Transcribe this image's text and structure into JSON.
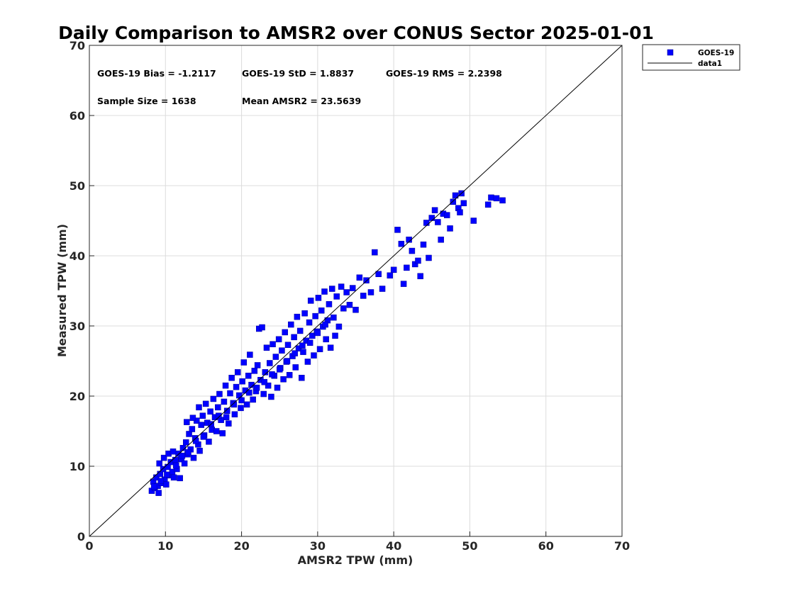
{
  "chart_data": {
    "type": "scatter",
    "title": "Daily Comparison to AMSR2 over CONUS Sector 2025-01-01",
    "xlabel": "AMSR2 TPW (mm)",
    "ylabel": "Measured TPW (mm)",
    "xlim": [
      0,
      70
    ],
    "ylim": [
      0,
      70
    ],
    "xticks": [
      "0",
      "10",
      "20",
      "30",
      "40",
      "50",
      "60",
      "70"
    ],
    "yticks": [
      "0",
      "10",
      "20",
      "30",
      "40",
      "50",
      "60",
      "70"
    ],
    "grid": true,
    "legend_position": "outside-top-right",
    "stats": {
      "bias": "GOES-19 Bias = -1.2117",
      "std": "GOES-19 StD = 1.8837",
      "rms": "GOES-19 RMS = 2.2398",
      "sample_size": "Sample Size = 1638",
      "mean": "Mean AMSR2 = 23.5639"
    },
    "series": [
      {
        "name": "GOES-19",
        "marker": "square",
        "color": "#0000ff",
        "points": [
          [
            8.2,
            6.5
          ],
          [
            8.4,
            7.8
          ],
          [
            8.6,
            6.9
          ],
          [
            8.8,
            8.4
          ],
          [
            9.0,
            7.2
          ],
          [
            9.1,
            6.2
          ],
          [
            9.3,
            8.9
          ],
          [
            9.5,
            7.6
          ],
          [
            9.7,
            9.6
          ],
          [
            9.9,
            8.1
          ],
          [
            10.1,
            7.4
          ],
          [
            10.3,
            9.9
          ],
          [
            10.5,
            8.7
          ],
          [
            10.7,
            10.6
          ],
          [
            10.9,
            9.2
          ],
          [
            11.1,
            8.4
          ],
          [
            11.3,
            10.9
          ],
          [
            11.5,
            9.6
          ],
          [
            11.7,
            11.8
          ],
          [
            11.9,
            8.3
          ],
          [
            9.2,
            10.4
          ],
          [
            9.8,
            11.2
          ],
          [
            10.4,
            11.8
          ],
          [
            11.0,
            12.1
          ],
          [
            12.1,
            11.0
          ],
          [
            12.3,
            12.6
          ],
          [
            12.5,
            10.4
          ],
          [
            12.7,
            13.4
          ],
          [
            12.9,
            11.7
          ],
          [
            13.1,
            14.6
          ],
          [
            13.3,
            12.4
          ],
          [
            13.5,
            15.3
          ],
          [
            13.7,
            11.2
          ],
          [
            13.9,
            14.0
          ],
          [
            14.1,
            16.5
          ],
          [
            14.3,
            13.1
          ],
          [
            14.5,
            12.2
          ],
          [
            14.7,
            15.9
          ],
          [
            14.9,
            17.2
          ],
          [
            15.1,
            14.4
          ],
          [
            12.8,
            16.3
          ],
          [
            13.6,
            16.9
          ],
          [
            14.4,
            18.4
          ],
          [
            15.3,
            18.9
          ],
          [
            15.5,
            16.2
          ],
          [
            15.7,
            13.5
          ],
          [
            15.9,
            17.8
          ],
          [
            16.1,
            15.2
          ],
          [
            16.3,
            19.6
          ],
          [
            16.5,
            17.0
          ],
          [
            16.7,
            15.0
          ],
          [
            16.9,
            18.4
          ],
          [
            17.1,
            20.3
          ],
          [
            17.3,
            16.6
          ],
          [
            17.5,
            14.7
          ],
          [
            17.7,
            19.2
          ],
          [
            17.9,
            21.5
          ],
          [
            18.1,
            17.9
          ],
          [
            18.3,
            16.1
          ],
          [
            18.5,
            20.4
          ],
          [
            18.7,
            22.6
          ],
          [
            18.9,
            19.0
          ],
          [
            19.1,
            17.4
          ],
          [
            19.3,
            21.3
          ],
          [
            19.5,
            23.4
          ],
          [
            19.7,
            20.1
          ],
          [
            19.9,
            18.3
          ],
          [
            20.1,
            22.1
          ],
          [
            20.3,
            24.8
          ],
          [
            20.5,
            20.8
          ],
          [
            20.7,
            18.8
          ],
          [
            20.9,
            22.9
          ],
          [
            21.1,
            25.9
          ],
          [
            21.3,
            21.6
          ],
          [
            21.5,
            19.5
          ],
          [
            21.7,
            23.6
          ],
          [
            21.9,
            20.7
          ],
          [
            22.1,
            24.4
          ],
          [
            22.3,
            29.6
          ],
          [
            22.5,
            22.3
          ],
          [
            22.7,
            29.8
          ],
          [
            22.9,
            20.3
          ],
          [
            23.1,
            23.4
          ],
          [
            23.3,
            26.9
          ],
          [
            23.5,
            21.5
          ],
          [
            23.7,
            24.7
          ],
          [
            23.9,
            19.9
          ],
          [
            24.1,
            27.4
          ],
          [
            24.3,
            22.9
          ],
          [
            24.5,
            25.6
          ],
          [
            24.7,
            21.2
          ],
          [
            24.9,
            28.1
          ],
          [
            25.1,
            24.0
          ],
          [
            25.3,
            26.5
          ],
          [
            25.5,
            22.4
          ],
          [
            25.7,
            29.1
          ],
          [
            25.9,
            24.9
          ],
          [
            26.1,
            27.3
          ],
          [
            26.3,
            23.0
          ],
          [
            26.5,
            30.2
          ],
          [
            26.7,
            25.7
          ],
          [
            26.9,
            28.4
          ],
          [
            27.1,
            24.1
          ],
          [
            27.3,
            31.3
          ],
          [
            27.5,
            26.8
          ],
          [
            27.7,
            29.3
          ],
          [
            27.9,
            22.6
          ],
          [
            28.1,
            26.3
          ],
          [
            28.3,
            31.8
          ],
          [
            28.5,
            27.9
          ],
          [
            28.7,
            24.9
          ],
          [
            28.9,
            30.5
          ],
          [
            29.1,
            33.6
          ],
          [
            29.3,
            28.6
          ],
          [
            29.5,
            25.8
          ],
          [
            29.7,
            31.4
          ],
          [
            29.9,
            29.2
          ],
          [
            30.1,
            34.0
          ],
          [
            30.3,
            26.7
          ],
          [
            30.5,
            32.2
          ],
          [
            30.7,
            29.9
          ],
          [
            30.9,
            34.9
          ],
          [
            31.1,
            28.1
          ],
          [
            31.3,
            30.8
          ],
          [
            31.5,
            33.1
          ],
          [
            31.7,
            26.9
          ],
          [
            31.9,
            35.3
          ],
          [
            32.1,
            31.2
          ],
          [
            32.3,
            28.6
          ],
          [
            32.5,
            34.2
          ],
          [
            32.8,
            29.9
          ],
          [
            33.1,
            35.6
          ],
          [
            33.4,
            32.5
          ],
          [
            33.8,
            34.8
          ],
          [
            34.2,
            33.0
          ],
          [
            34.6,
            35.4
          ],
          [
            35.0,
            32.3
          ],
          [
            35.5,
            36.9
          ],
          [
            36.0,
            34.3
          ],
          [
            36.4,
            36.5
          ],
          [
            37.0,
            34.8
          ],
          [
            37.5,
            40.5
          ],
          [
            38.0,
            37.4
          ],
          [
            38.5,
            35.3
          ],
          [
            39.5,
            37.2
          ],
          [
            40.0,
            38.0
          ],
          [
            40.5,
            43.7
          ],
          [
            41.0,
            41.7
          ],
          [
            41.3,
            36.0
          ],
          [
            41.7,
            38.3
          ],
          [
            42.0,
            42.3
          ],
          [
            42.4,
            40.7
          ],
          [
            42.8,
            38.8
          ],
          [
            43.2,
            39.3
          ],
          [
            43.5,
            37.1
          ],
          [
            43.9,
            41.6
          ],
          [
            44.3,
            44.7
          ],
          [
            44.6,
            39.7
          ],
          [
            45.0,
            45.4
          ],
          [
            45.4,
            46.5
          ],
          [
            45.8,
            44.8
          ],
          [
            46.2,
            42.3
          ],
          [
            46.5,
            46.0
          ],
          [
            47.0,
            45.8
          ],
          [
            47.4,
            43.9
          ],
          [
            47.8,
            47.7
          ],
          [
            48.1,
            48.6
          ],
          [
            48.5,
            46.8
          ],
          [
            48.7,
            46.2
          ],
          [
            48.9,
            48.9
          ],
          [
            49.2,
            47.5
          ],
          [
            50.5,
            45.0
          ],
          [
            52.4,
            47.3
          ],
          [
            52.8,
            48.3
          ],
          [
            53.5,
            48.2
          ],
          [
            54.3,
            47.9
          ],
          [
            8.5,
            7.1
          ],
          [
            9.4,
            7.9
          ],
          [
            10.2,
            8.8
          ],
          [
            11.4,
            10.1
          ],
          [
            12.2,
            11.5
          ],
          [
            13.0,
            12.0
          ],
          [
            14.0,
            13.6
          ],
          [
            15.0,
            14.2
          ],
          [
            16.0,
            16.0
          ],
          [
            17.0,
            17.2
          ],
          [
            18.0,
            17.0
          ],
          [
            19.0,
            18.8
          ],
          [
            20.0,
            19.4
          ],
          [
            21.0,
            20.5
          ],
          [
            22.0,
            21.2
          ],
          [
            23.0,
            22.0
          ],
          [
            24.0,
            23.1
          ],
          [
            25.0,
            23.8
          ],
          [
            26.0,
            25.0
          ],
          [
            27.0,
            26.1
          ],
          [
            28.0,
            27.2
          ],
          [
            29.0,
            27.6
          ],
          [
            30.0,
            29.0
          ],
          [
            31.0,
            30.2
          ]
        ]
      },
      {
        "name": "data1",
        "marker": "line",
        "color": "#000000",
        "points": [
          [
            0,
            0
          ],
          [
            70,
            70
          ]
        ]
      }
    ]
  }
}
